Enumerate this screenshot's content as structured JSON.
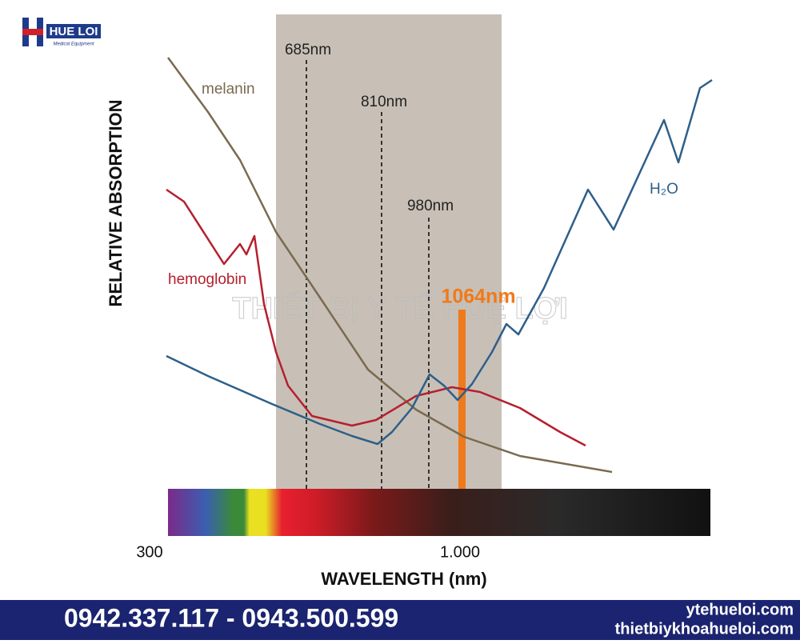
{
  "logo": {
    "name": "HUE LOI",
    "tagline": "Medical Equipment"
  },
  "chart": {
    "y_axis_label": "RELATIVE ABSORPTION",
    "x_axis_label": "WAVELENGTH (nm)",
    "x_labels": [
      "300",
      "1.000"
    ],
    "markers": [
      "685nm",
      "810nm",
      "980nm",
      "1064nm"
    ],
    "curves": [
      "melanin",
      "hemoglobin",
      "H₂O"
    ],
    "watermark": "THIẾT BỊ Y TẾ HUỆ LỢI"
  },
  "footer": {
    "phones": "0942.337.117 - 0943.500.599",
    "websites": [
      "ytehueloi.com",
      "thietbiykhoahueloi.com"
    ]
  }
}
